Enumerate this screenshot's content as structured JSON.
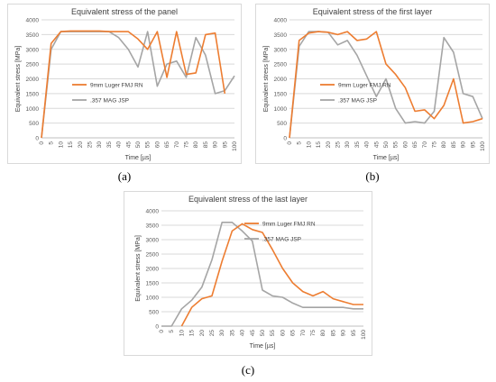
{
  "panels": [
    {
      "label": "(a)"
    },
    {
      "label": "(b)"
    },
    {
      "label": "(c)"
    }
  ],
  "chart_data": [
    {
      "type": "line",
      "title": "Equivalent stress of the panel",
      "xlabel": "Time [µs]",
      "ylabel": "Equivalent stress [MPa]",
      "ylim": [
        0,
        4000
      ],
      "yticks": [
        0,
        500,
        1000,
        1500,
        2000,
        2500,
        3000,
        3500,
        4000
      ],
      "x": [
        0,
        5,
        10,
        15,
        20,
        25,
        30,
        35,
        40,
        45,
        50,
        55,
        60,
        65,
        70,
        75,
        80,
        85,
        90,
        95,
        100
      ],
      "grid": "horizontal",
      "legend": "center-left",
      "series": [
        {
          "name": "9mm Luger FMJ RN",
          "color": "#ed7d31",
          "values": [
            0,
            3200,
            3600,
            3620,
            3620,
            3620,
            3620,
            3600,
            3600,
            3600,
            3350,
            3000,
            3600,
            2050,
            3600,
            2150,
            2200,
            3500,
            3550,
            1500,
            null
          ]
        },
        {
          "name": ".357 MAG JSP",
          "color": "#a5a5a5",
          "values": [
            0,
            3000,
            3600,
            3600,
            3600,
            3600,
            3600,
            3600,
            3400,
            3000,
            2400,
            3600,
            1750,
            2500,
            2600,
            2050,
            3400,
            2800,
            1500,
            1600,
            2100
          ]
        }
      ]
    },
    {
      "type": "line",
      "title": "Equivalent stress of the first layer",
      "xlabel": "Time [µs]",
      "ylabel": "Equivalent stress [MPa]",
      "ylim": [
        0,
        4000
      ],
      "yticks": [
        0,
        500,
        1000,
        1500,
        2000,
        2500,
        3000,
        3500,
        4000
      ],
      "x": [
        0,
        5,
        10,
        15,
        20,
        25,
        30,
        35,
        40,
        45,
        50,
        55,
        60,
        65,
        70,
        75,
        80,
        85,
        90,
        95,
        100
      ],
      "grid": "horizontal",
      "legend": "center-left",
      "series": [
        {
          "name": "9mm Luger FMJ RN",
          "color": "#ed7d31",
          "values": [
            0,
            3300,
            3550,
            3600,
            3580,
            3500,
            3600,
            3300,
            3350,
            3600,
            2500,
            2150,
            1700,
            900,
            950,
            650,
            1100,
            2000,
            500,
            550,
            650
          ]
        },
        {
          "name": ".357 MAG JSP",
          "color": "#a5a5a5",
          "values": [
            0,
            3100,
            3600,
            3600,
            3580,
            3150,
            3300,
            2800,
            2100,
            1400,
            2000,
            1000,
            500,
            550,
            500,
            900,
            3400,
            2900,
            1500,
            1400,
            650
          ]
        }
      ]
    },
    {
      "type": "line",
      "title": "Equivalent stress of the last layer",
      "xlabel": "Time [µs]",
      "ylabel": "Equivalent stress [MPa]",
      "ylim": [
        0,
        4000
      ],
      "yticks": [
        0,
        500,
        1000,
        1500,
        2000,
        2500,
        3000,
        3500,
        4000
      ],
      "x": [
        0,
        5,
        10,
        15,
        20,
        25,
        30,
        35,
        40,
        45,
        50,
        55,
        60,
        65,
        70,
        75,
        80,
        85,
        90,
        95,
        100
      ],
      "grid": "horizontal",
      "legend": "top-right",
      "series": [
        {
          "name": "9mm Luger FMJ RN",
          "color": "#ed7d31",
          "values": [
            null,
            null,
            0,
            650,
            950,
            1050,
            2250,
            3300,
            3550,
            3350,
            3250,
            2650,
            2000,
            1500,
            1200,
            1050,
            1200,
            950,
            850,
            750,
            750
          ]
        },
        {
          "name": ".357 MAG JSP",
          "color": "#a5a5a5",
          "values": [
            0,
            0,
            600,
            900,
            1350,
            2300,
            3600,
            3600,
            3300,
            2950,
            1250,
            1050,
            1000,
            800,
            650,
            650,
            650,
            650,
            650,
            600,
            600
          ]
        }
      ]
    }
  ]
}
